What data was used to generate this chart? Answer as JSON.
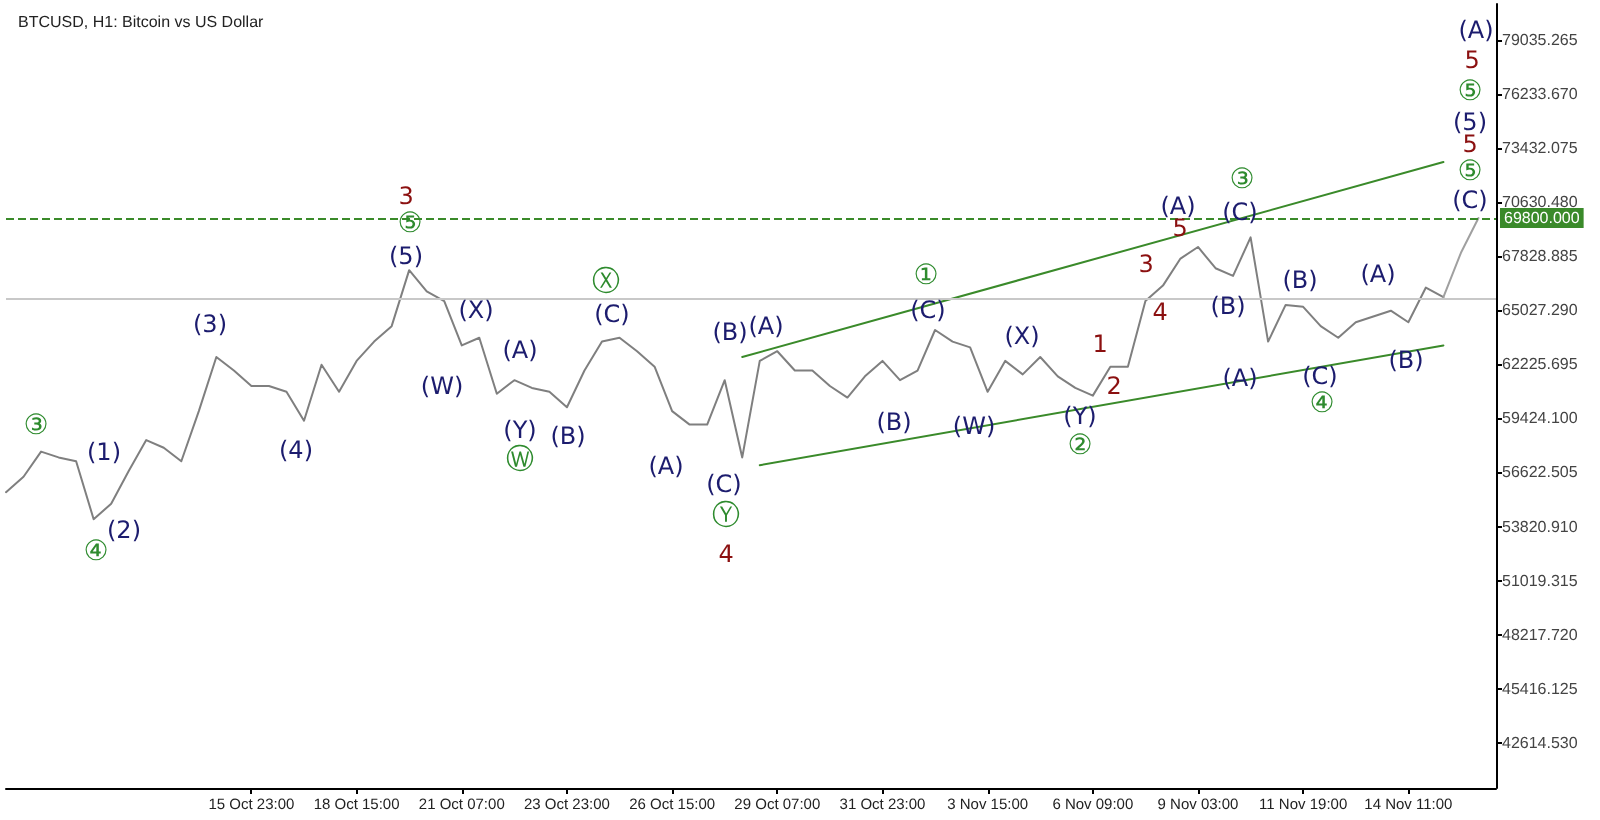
{
  "chart_data": {
    "type": "line",
    "title": "BTCUSD, H1: Bitcoin vs US Dollar",
    "categories": [
      null,
      null,
      null,
      null,
      null,
      null,
      null,
      null,
      null,
      null,
      null,
      null,
      null,
      null,
      "15 Oct 23:00",
      null,
      null,
      null,
      null,
      null,
      "18 Oct 15:00",
      null,
      null,
      null,
      null,
      null,
      "21 Oct 07:00",
      null,
      null,
      null,
      null,
      null,
      "23 Oct 23:00",
      null,
      null,
      null,
      null,
      null,
      "26 Oct 15:00",
      null,
      null,
      null,
      null,
      null,
      "29 Oct 07:00",
      null,
      null,
      null,
      null,
      null,
      "31 Oct 23:00",
      null,
      null,
      null,
      null,
      null,
      "3 Nov 15:00",
      null,
      null,
      null,
      null,
      null,
      "6 Nov 09:00",
      null,
      null,
      null,
      null,
      null,
      "9 Nov 03:00",
      null,
      null,
      null,
      null,
      null,
      "11 Nov 19:00",
      null,
      null,
      null,
      null,
      null,
      "14 Nov 11:00",
      null,
      null,
      null,
      null,
      null
    ],
    "series": [
      {
        "color": "#7f7f7f",
        "values": [
          55600,
          56400,
          57700,
          57400,
          57200,
          54200,
          55000,
          56700,
          58300,
          57900,
          57200,
          59800,
          62600,
          61900,
          61100,
          61100,
          60800,
          59300,
          62200,
          60800,
          62400,
          63400,
          64200,
          67100,
          66000,
          65500,
          63200,
          63600,
          60700,
          61400,
          61000,
          60800,
          60000,
          61900,
          63400,
          63600,
          62900,
          62100,
          59800,
          59100,
          59100,
          61400,
          57400,
          62400,
          62900,
          61900,
          61900,
          61100,
          60500,
          61600,
          62400,
          61400,
          61900,
          64000,
          63400,
          63100,
          60800,
          62400,
          61700,
          62600,
          61600,
          61000,
          60600,
          62100,
          62100,
          65500,
          66300,
          67700,
          68300,
          67200,
          66800,
          68800,
          63400,
          65300,
          65200,
          64200,
          63600,
          64400,
          64700,
          65000,
          64400,
          66200,
          65700,
          null,
          null,
          null
        ]
      },
      {
        "color": "#a0a0a0",
        "values": [
          null,
          null,
          null,
          null,
          null,
          null,
          null,
          null,
          null,
          null,
          null,
          null,
          null,
          null,
          null,
          null,
          null,
          null,
          null,
          null,
          null,
          null,
          null,
          null,
          null,
          null,
          null,
          null,
          null,
          null,
          null,
          null,
          null,
          null,
          null,
          null,
          null,
          null,
          null,
          null,
          null,
          null,
          null,
          null,
          null,
          null,
          null,
          null,
          null,
          null,
          null,
          null,
          null,
          null,
          null,
          null,
          null,
          null,
          null,
          null,
          null,
          null,
          null,
          null,
          null,
          null,
          null,
          null,
          null,
          null,
          null,
          null,
          null,
          null,
          null,
          null,
          null,
          null,
          null,
          null,
          null,
          null,
          65700,
          68000,
          69800,
          null
        ]
      },
      {
        "color": "#3a8a2a",
        "values": [
          null,
          null,
          null,
          null,
          null,
          null,
          null,
          null,
          null,
          null,
          null,
          null,
          null,
          null,
          null,
          null,
          null,
          null,
          null,
          null,
          null,
          null,
          null,
          null,
          null,
          null,
          null,
          null,
          null,
          null,
          null,
          null,
          null,
          null,
          null,
          null,
          null,
          null,
          null,
          null,
          null,
          null,
          62600,
          null,
          null,
          null,
          null,
          null,
          null,
          null,
          null,
          null,
          null,
          null,
          null,
          null,
          null,
          null,
          null,
          null,
          null,
          null,
          null,
          null,
          null,
          null,
          null,
          null,
          null,
          null,
          null,
          null,
          null,
          null,
          null,
          null,
          null,
          null,
          null,
          null,
          null,
          null,
          72700,
          null,
          null,
          null
        ]
      },
      {
        "color": "#3a8a2a",
        "values": [
          null,
          null,
          null,
          null,
          null,
          null,
          null,
          null,
          null,
          null,
          null,
          null,
          null,
          null,
          null,
          null,
          null,
          null,
          null,
          null,
          null,
          null,
          null,
          null,
          null,
          null,
          null,
          null,
          null,
          null,
          null,
          null,
          null,
          null,
          null,
          null,
          null,
          null,
          null,
          null,
          null,
          null,
          null,
          57000,
          null,
          null,
          null,
          null,
          null,
          null,
          null,
          null,
          null,
          null,
          null,
          null,
          null,
          null,
          null,
          null,
          null,
          null,
          null,
          null,
          null,
          null,
          null,
          null,
          null,
          null,
          null,
          null,
          null,
          null,
          null,
          null,
          null,
          null,
          null,
          null,
          null,
          null,
          63200,
          null,
          null,
          null
        ]
      }
    ],
    "ylim": [
      40277,
      80886
    ],
    "yticks": [
      {
        "value": 42614.53,
        "label": "42614.530"
      },
      45416.125,
      {
        "value": 48217.72,
        "label": "48217.720"
      },
      51019.315,
      {
        "value": 53820.91,
        "label": "53820.910"
      },
      56622.505,
      {
        "value": 59424.1,
        "label": "59424.100"
      },
      62225.695,
      {
        "value": 65027.29,
        "label": "65027.290"
      },
      67828.885,
      {
        "value": 70630.48,
        "label": "70630.480"
      },
      73432.075,
      {
        "value": 76233.67,
        "label": "76233.670"
      },
      79035.265
    ],
    "ref_lines": [
      {
        "axis": "y",
        "value": 69800,
        "label": "69800.000",
        "color": "#3a8a2a",
        "line_style": "dashed"
      },
      {
        "axis": "y",
        "value": 65600,
        "color": "#c8c8c8",
        "line_style": "solid"
      }
    ],
    "grid": false,
    "marker": "none",
    "line_style": "solid",
    "annotations": [
      "③",
      "④",
      "(1)",
      "(2)",
      "(3)",
      "(4)",
      "3",
      "⑤",
      "(5)",
      "(W)",
      "(X)",
      "(A)",
      "(Y)",
      "Ⓦ",
      "(B)",
      "Ⓧ",
      "(C)",
      "(A)",
      "(B)",
      "(A)",
      "(C)",
      "Ⓨ",
      "4",
      "①",
      "(C)",
      "(X)",
      "(B)",
      "(W)",
      "(Y)",
      "②",
      "1",
      "2",
      "3",
      "4",
      "5",
      "(A)",
      "③",
      "(C)",
      "(B)",
      "(A)",
      "(B)",
      "(C)",
      "④",
      "(A)",
      "(B)",
      "(C)",
      "⑤",
      "5",
      "(5)",
      "⑤",
      "5",
      "(A)"
    ]
  }
}
